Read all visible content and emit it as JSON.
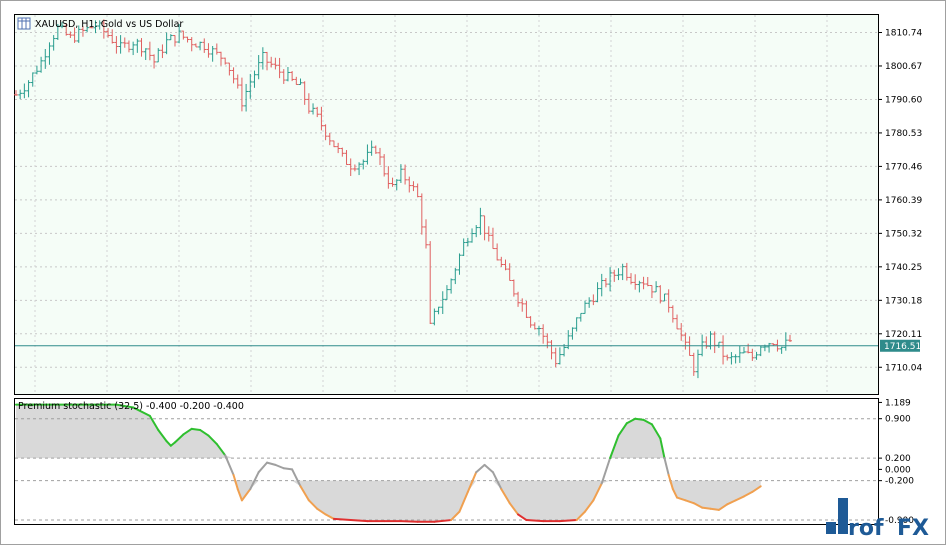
{
  "chart_data": [
    {
      "type": "candlestick",
      "title": "XAUUSD, H1:  Gold vs US Dollar",
      "current_price_label": "1716.51",
      "current_price": 1716.51,
      "y_ticks": [
        {
          "label": "1810.74",
          "value": 1810.74
        },
        {
          "label": "1800.67",
          "value": 1800.67
        },
        {
          "label": "1790.60",
          "value": 1790.6
        },
        {
          "label": "1780.53",
          "value": 1780.53
        },
        {
          "label": "1770.46",
          "value": 1770.46
        },
        {
          "label": "1760.39",
          "value": 1760.39
        },
        {
          "label": "1750.32",
          "value": 1750.32
        },
        {
          "label": "1740.25",
          "value": 1740.25
        },
        {
          "label": "1730.18",
          "value": 1730.18
        },
        {
          "label": "1720.11",
          "value": 1720.11
        },
        {
          "label": "1710.04",
          "value": 1710.04
        }
      ],
      "ylim": [
        1702,
        1816
      ],
      "grid": true,
      "close_path": [
        [
          0,
          1792
        ],
        [
          3,
          1796
        ],
        [
          6,
          1802
        ],
        [
          8,
          1808
        ],
        [
          10,
          1812
        ],
        [
          13,
          1809
        ],
        [
          16,
          1811
        ],
        [
          19,
          1813
        ],
        [
          22,
          1810
        ],
        [
          25,
          1806
        ],
        [
          28,
          1808
        ],
        [
          31,
          1806
        ],
        [
          33,
          1802
        ],
        [
          36,
          1808
        ],
        [
          39,
          1810
        ],
        [
          42,
          1808
        ],
        [
          45,
          1807
        ],
        [
          48,
          1804
        ],
        [
          50,
          1803
        ],
        [
          52,
          1797
        ],
        [
          54,
          1790
        ],
        [
          56,
          1796
        ],
        [
          59,
          1803
        ],
        [
          62,
          1800
        ],
        [
          65,
          1797
        ],
        [
          68,
          1794
        ],
        [
          70,
          1788
        ],
        [
          72,
          1785
        ],
        [
          74,
          1781
        ],
        [
          76,
          1777
        ],
        [
          78,
          1773
        ],
        [
          80,
          1771
        ],
        [
          83,
          1772
        ],
        [
          86,
          1776
        ],
        [
          88,
          1769
        ],
        [
          90,
          1764
        ],
        [
          92,
          1768
        ],
        [
          94,
          1766
        ],
        [
          96,
          1761
        ],
        [
          98,
          1746
        ],
        [
          99,
          1722
        ],
        [
          101,
          1729
        ],
        [
          103,
          1733
        ],
        [
          105,
          1740
        ],
        [
          107,
          1747
        ],
        [
          109,
          1752
        ],
        [
          111,
          1755
        ],
        [
          113,
          1748
        ],
        [
          115,
          1743
        ],
        [
          117,
          1738
        ],
        [
          119,
          1733
        ],
        [
          121,
          1729
        ],
        [
          123,
          1724
        ],
        [
          125,
          1722
        ],
        [
          127,
          1717
        ],
        [
          129,
          1712
        ],
        [
          131,
          1716
        ],
        [
          133,
          1721
        ],
        [
          135,
          1727
        ],
        [
          137,
          1730
        ],
        [
          139,
          1733
        ],
        [
          141,
          1736
        ],
        [
          143,
          1738
        ],
        [
          145,
          1740
        ],
        [
          147,
          1737
        ],
        [
          150,
          1736
        ],
        [
          153,
          1733
        ],
        [
          156,
          1729
        ],
        [
          158,
          1723
        ],
        [
          160,
          1716
        ],
        [
          162,
          1710
        ],
        [
          164,
          1716
        ],
        [
          166,
          1719
        ],
        [
          168,
          1716
        ],
        [
          170,
          1712
        ],
        [
          172,
          1713
        ],
        [
          174,
          1714
        ],
        [
          176,
          1713
        ],
        [
          178,
          1717
        ],
        [
          181,
          1718
        ],
        [
          183,
          1716
        ],
        [
          185,
          1718
        ]
      ]
    },
    {
      "type": "line",
      "title": "Premium stochastic (32,5) -0.400 -0.200 -0.400",
      "y_ticks": [
        {
          "label": "1.189",
          "value": 1.189
        },
        {
          "label": "0.900",
          "value": 0.9
        },
        {
          "label": "0.200",
          "value": 0.2
        },
        {
          "label": "0.000",
          "value": 0.0
        },
        {
          "label": "-0.200",
          "value": -0.2
        },
        {
          "label": "-0.900",
          "value": -0.9
        }
      ],
      "ylim": [
        -0.97,
        1.25
      ],
      "levels": [
        0.9,
        0.2,
        -0.2,
        -0.9
      ],
      "colors": {
        "above_high": "#2fbf2f",
        "neutral": "#a0a0a0",
        "below_low": "#f0a050",
        "extreme_low": "#e03030",
        "fill": "#d9d9d9"
      },
      "values": [
        [
          0,
          1.15
        ],
        [
          4,
          1.15
        ],
        [
          8,
          1.15
        ],
        [
          12,
          1.15
        ],
        [
          16,
          1.15
        ],
        [
          20,
          1.15
        ],
        [
          24,
          1.15
        ],
        [
          28,
          1.1
        ],
        [
          32,
          0.95
        ],
        [
          34,
          0.7
        ],
        [
          36,
          0.5
        ],
        [
          37,
          0.42
        ],
        [
          38,
          0.48
        ],
        [
          40,
          0.62
        ],
        [
          42,
          0.72
        ],
        [
          44,
          0.7
        ],
        [
          46,
          0.6
        ],
        [
          48,
          0.45
        ],
        [
          50,
          0.25
        ],
        [
          52,
          -0.1
        ],
        [
          53,
          -0.35
        ],
        [
          54,
          -0.55
        ],
        [
          56,
          -0.35
        ],
        [
          58,
          -0.05
        ],
        [
          60,
          0.12
        ],
        [
          62,
          0.08
        ],
        [
          64,
          0.02
        ],
        [
          66,
          0.0
        ],
        [
          68,
          -0.3
        ],
        [
          70,
          -0.55
        ],
        [
          72,
          -0.7
        ],
        [
          74,
          -0.8
        ],
        [
          76,
          -0.88
        ],
        [
          80,
          -0.9
        ],
        [
          84,
          -0.92
        ],
        [
          88,
          -0.92
        ],
        [
          92,
          -0.92
        ],
        [
          96,
          -0.93
        ],
        [
          100,
          -0.93
        ],
        [
          104,
          -0.9
        ],
        [
          106,
          -0.75
        ],
        [
          108,
          -0.4
        ],
        [
          110,
          -0.05
        ],
        [
          112,
          0.08
        ],
        [
          114,
          -0.05
        ],
        [
          116,
          -0.35
        ],
        [
          118,
          -0.6
        ],
        [
          120,
          -0.8
        ],
        [
          122,
          -0.9
        ],
        [
          126,
          -0.92
        ],
        [
          130,
          -0.92
        ],
        [
          134,
          -0.9
        ],
        [
          136,
          -0.75
        ],
        [
          138,
          -0.55
        ],
        [
          140,
          -0.25
        ],
        [
          142,
          0.2
        ],
        [
          144,
          0.6
        ],
        [
          146,
          0.82
        ],
        [
          148,
          0.9
        ],
        [
          150,
          0.88
        ],
        [
          152,
          0.8
        ],
        [
          154,
          0.55
        ],
        [
          155,
          0.2
        ],
        [
          156,
          -0.1
        ],
        [
          157,
          -0.35
        ],
        [
          158,
          -0.5
        ],
        [
          160,
          -0.55
        ],
        [
          162,
          -0.6
        ],
        [
          164,
          -0.68
        ],
        [
          166,
          -0.7
        ],
        [
          168,
          -0.72
        ],
        [
          170,
          -0.62
        ],
        [
          172,
          -0.55
        ],
        [
          174,
          -0.48
        ],
        [
          176,
          -0.4
        ],
        [
          178,
          -0.3
        ]
      ]
    }
  ],
  "watermark": "ProfFX"
}
